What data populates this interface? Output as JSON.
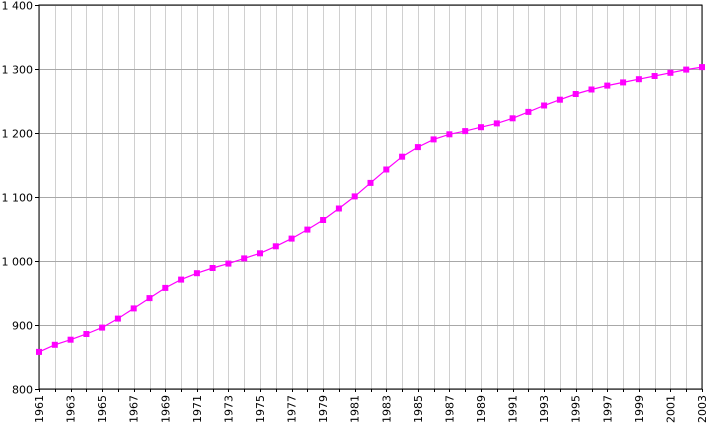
{
  "chart_data": {
    "type": "line",
    "title": "",
    "xlabel": "",
    "ylabel": "",
    "x": [
      1961,
      1962,
      1963,
      1964,
      1965,
      1966,
      1967,
      1968,
      1969,
      1970,
      1971,
      1972,
      1973,
      1974,
      1975,
      1976,
      1977,
      1978,
      1979,
      1980,
      1981,
      1982,
      1983,
      1984,
      1985,
      1986,
      1987,
      1988,
      1989,
      1990,
      1991,
      1992,
      1993,
      1994,
      1995,
      1996,
      1997,
      1998,
      1999,
      2000,
      2001,
      2002,
      2003
    ],
    "xlim": [
      1961,
      2003
    ],
    "xticks": [
      "1961",
      "1963",
      "1965",
      "1967",
      "1969",
      "1971",
      "1973",
      "1975",
      "1977",
      "1979",
      "1981",
      "1983",
      "1985",
      "1987",
      "1989",
      "1991",
      "1993",
      "1995",
      "1997",
      "1999",
      "2001",
      "2003"
    ],
    "ylim": [
      800,
      1400
    ],
    "yticks": [
      "800",
      "900",
      "1 000",
      "1 100",
      "1 200",
      "1 300",
      "1 400"
    ],
    "grid": {
      "horizontal": true,
      "vertical": true
    },
    "legend": "none",
    "series": [
      {
        "color": "#ff00ff",
        "marker": "square",
        "values": [
          858,
          869,
          877,
          886,
          896,
          910,
          926,
          942,
          958,
          971,
          981,
          989,
          996,
          1004,
          1012,
          1023,
          1035,
          1049,
          1064,
          1082,
          1101,
          1122,
          1143,
          1163,
          1178,
          1190,
          1198,
          1203,
          1209,
          1215,
          1223,
          1233,
          1243,
          1252,
          1261,
          1268,
          1274,
          1279,
          1284,
          1289,
          1294,
          1299,
          1303
        ]
      }
    ]
  }
}
